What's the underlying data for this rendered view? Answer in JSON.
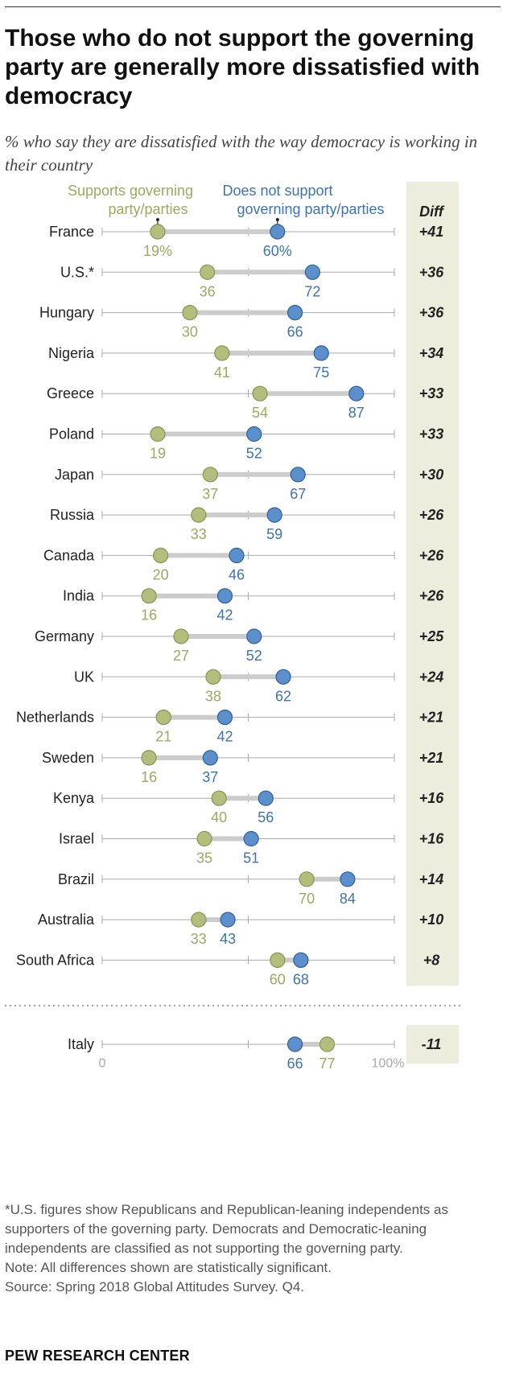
{
  "title": "Those who do not support the governing party are generally more dissatisfied with democracy",
  "subtitle": "% who say they are dissatisfied with the way democracy is working in their country",
  "legend": {
    "supports": "Supports governing party/parties",
    "not_supports": "Does not support governing party/parties",
    "diff_header": "Diff"
  },
  "colors": {
    "supports": "#b3bd7c",
    "supports_text": "#a0a860",
    "not_supports": "#5b90cc",
    "not_supports_text": "#3d73b4",
    "diff_band": "#ededde",
    "connector": "#cccccc",
    "axis": "#aaaaaa"
  },
  "chart_data": {
    "type": "dot-plot",
    "xlim": [
      0,
      100
    ],
    "axis_labels": {
      "min": "0",
      "max": "100%"
    },
    "series": [
      {
        "name": "Supports governing party/parties"
      },
      {
        "name": "Does not support governing party/parties"
      }
    ],
    "rows": [
      {
        "country": "France",
        "supports": 19,
        "not_supports": 60,
        "diff": "+41",
        "supports_label": "19%",
        "not_supports_label": "60%"
      },
      {
        "country": "U.S.*",
        "supports": 36,
        "not_supports": 72,
        "diff": "+36",
        "supports_label": "36",
        "not_supports_label": "72"
      },
      {
        "country": "Hungary",
        "supports": 30,
        "not_supports": 66,
        "diff": "+36",
        "supports_label": "30",
        "not_supports_label": "66"
      },
      {
        "country": "Nigeria",
        "supports": 41,
        "not_supports": 75,
        "diff": "+34",
        "supports_label": "41",
        "not_supports_label": "75"
      },
      {
        "country": "Greece",
        "supports": 54,
        "not_supports": 87,
        "diff": "+33",
        "supports_label": "54",
        "not_supports_label": "87"
      },
      {
        "country": "Poland",
        "supports": 19,
        "not_supports": 52,
        "diff": "+33",
        "supports_label": "19",
        "not_supports_label": "52"
      },
      {
        "country": "Japan",
        "supports": 37,
        "not_supports": 67,
        "diff": "+30",
        "supports_label": "37",
        "not_supports_label": "67"
      },
      {
        "country": "Russia",
        "supports": 33,
        "not_supports": 59,
        "diff": "+26",
        "supports_label": "33",
        "not_supports_label": "59"
      },
      {
        "country": "Canada",
        "supports": 20,
        "not_supports": 46,
        "diff": "+26",
        "supports_label": "20",
        "not_supports_label": "46"
      },
      {
        "country": "India",
        "supports": 16,
        "not_supports": 42,
        "diff": "+26",
        "supports_label": "16",
        "not_supports_label": "42"
      },
      {
        "country": "Germany",
        "supports": 27,
        "not_supports": 52,
        "diff": "+25",
        "supports_label": "27",
        "not_supports_label": "52"
      },
      {
        "country": "UK",
        "supports": 38,
        "not_supports": 62,
        "diff": "+24",
        "supports_label": "38",
        "not_supports_label": "62"
      },
      {
        "country": "Netherlands",
        "supports": 21,
        "not_supports": 42,
        "diff": "+21",
        "supports_label": "21",
        "not_supports_label": "42"
      },
      {
        "country": "Sweden",
        "supports": 16,
        "not_supports": 37,
        "diff": "+21",
        "supports_label": "16",
        "not_supports_label": "37"
      },
      {
        "country": "Kenya",
        "supports": 40,
        "not_supports": 56,
        "diff": "+16",
        "supports_label": "40",
        "not_supports_label": "56"
      },
      {
        "country": "Israel",
        "supports": 35,
        "not_supports": 51,
        "diff": "+16",
        "supports_label": "35",
        "not_supports_label": "51"
      },
      {
        "country": "Brazil",
        "supports": 70,
        "not_supports": 84,
        "diff": "+14",
        "supports_label": "70",
        "not_supports_label": "84"
      },
      {
        "country": "Australia",
        "supports": 33,
        "not_supports": 43,
        "diff": "+10",
        "supports_label": "33",
        "not_supports_label": "43"
      },
      {
        "country": "South Africa",
        "supports": 60,
        "not_supports": 68,
        "diff": "+8",
        "supports_label": "60",
        "not_supports_label": "68"
      }
    ],
    "separate_rows": [
      {
        "country": "Italy",
        "supports": 77,
        "not_supports": 66,
        "diff": "-11",
        "supports_label": "77",
        "not_supports_label": "66"
      }
    ]
  },
  "footnotes": {
    "us_note": "*U.S. figures show Republicans and Republican-leaning independents as supporters of the governing party. Democrats and Democratic-leaning independents are classified as not supporting the governing party.",
    "note": "Note: All differences shown are statistically significant.",
    "source": "Source: Spring 2018 Global Attitudes Survey. Q4."
  },
  "brand": "PEW RESEARCH CENTER"
}
